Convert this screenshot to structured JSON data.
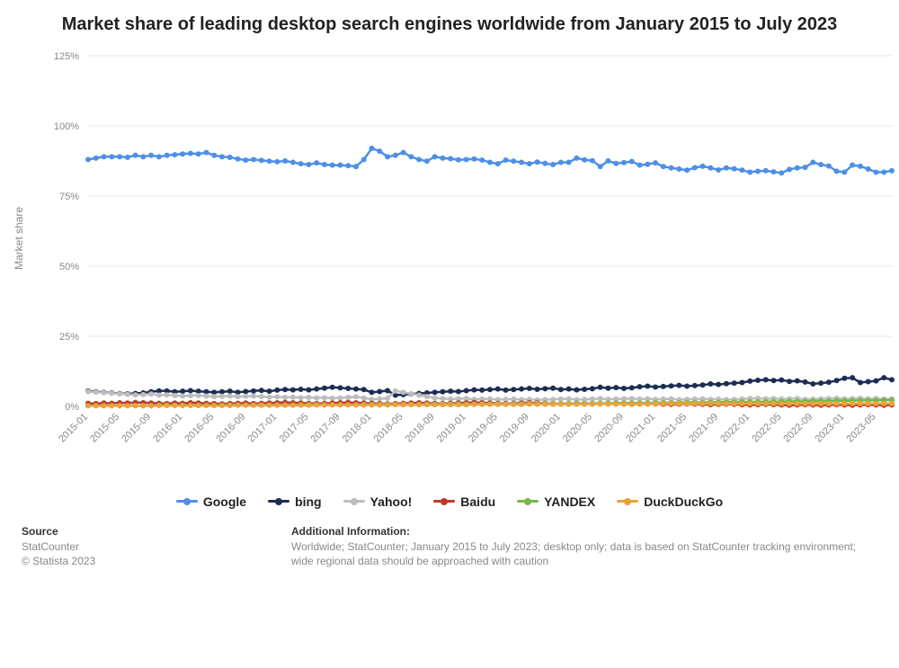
{
  "chart": {
    "type": "line",
    "title": "Market share of leading desktop search engines worldwide from January 2015 to July 2023",
    "ylabel": "Market share",
    "background_color": "#ffffff",
    "grid_color": "#e8e8e8",
    "axis_color": "#cccccc",
    "tick_font_size": 11,
    "title_font_size": 20,
    "line_width": 2.5,
    "marker_radius": 3,
    "ylim": [
      0,
      125
    ],
    "ytick_step": 25,
    "ytick_suffix": "%",
    "x_labels": [
      "2015-01",
      "2015-05",
      "2015-09",
      "2016-01",
      "2016-05",
      "2016-09",
      "2017-01",
      "2017-05",
      "2017-09",
      "2018-01",
      "2018-05",
      "2018-09",
      "2019-01",
      "2019-05",
      "2019-09",
      "2020-01",
      "2020-05",
      "2020-09",
      "2021-01",
      "2021-05",
      "2021-09",
      "2022-01",
      "2022-05",
      "2022-09",
      "2023-01",
      "2023-05"
    ],
    "x_label_every": 4,
    "series": [
      {
        "name": "Google",
        "color": "#4d8fe6",
        "values": [
          88,
          88.5,
          89,
          89,
          89,
          88.8,
          89.5,
          89,
          89.5,
          89,
          89.5,
          89.7,
          90,
          90.2,
          90,
          90.5,
          89.5,
          89,
          88.8,
          88.2,
          87.8,
          88,
          87.7,
          87.4,
          87.2,
          87.5,
          87,
          86.5,
          86.2,
          86.8,
          86.2,
          86,
          86,
          85.8,
          85.5,
          88,
          92,
          91,
          89,
          89.5,
          90.5,
          89,
          88,
          87.4,
          89,
          88.5,
          88.3,
          87.9,
          88,
          88.2,
          87.8,
          87,
          86.5,
          87.8,
          87.4,
          87,
          86.5,
          87.1,
          86.6,
          86.2,
          87,
          87,
          88.5,
          87.9,
          87.6,
          85.5,
          87.5,
          86.6,
          86.9,
          87.3,
          86,
          86.3,
          86.8,
          85.5,
          85,
          84.6,
          84.2,
          85.1,
          85.6,
          85,
          84.3,
          85,
          84.7,
          84.2,
          83.5,
          83.8,
          84,
          83.6,
          83.2,
          84.5,
          85,
          85.2,
          87,
          86.2,
          85.7,
          83.8,
          83.5,
          86,
          85.6,
          84.6,
          83.5,
          83.5,
          84
        ]
      },
      {
        "name": "bing",
        "color": "#1c2d54",
        "values": [
          5.5,
          5.2,
          5,
          4.8,
          4.6,
          4.5,
          4.6,
          4.8,
          5.2,
          5.5,
          5.5,
          5.2,
          5.4,
          5.6,
          5.4,
          5.2,
          5,
          5.2,
          5.4,
          5,
          5.3,
          5.5,
          5.7,
          5.4,
          5.8,
          6,
          5.9,
          6.1,
          5.9,
          6.2,
          6.5,
          6.8,
          6.6,
          6.4,
          6.2,
          6,
          5,
          5.3,
          5.6,
          4,
          4.2,
          4.4,
          4.6,
          4.8,
          5,
          5.2,
          5.4,
          5.3,
          5.6,
          5.9,
          5.8,
          6,
          6.2,
          5.8,
          6,
          6.2,
          6.4,
          6.1,
          6.3,
          6.5,
          6,
          6.2,
          5.9,
          6.1,
          6.3,
          6.8,
          6.5,
          6.7,
          6.4,
          6.6,
          7,
          7.2,
          6.9,
          7.1,
          7.3,
          7.5,
          7.2,
          7.4,
          7.6,
          8,
          7.8,
          8.1,
          8.3,
          8.5,
          9,
          9.3,
          9.5,
          9.2,
          9.4,
          8.9,
          9.1,
          8.7,
          8,
          8.3,
          8.6,
          9.2,
          10,
          10.2,
          8.5,
          8.8,
          9.1,
          10.2,
          9.5
        ]
      },
      {
        "name": "Yahoo!",
        "color": "#bdbdbd",
        "values": [
          5.3,
          5.1,
          4.9,
          4.7,
          4.5,
          4.3,
          4.1,
          4.2,
          4.4,
          4,
          4.1,
          3.9,
          3.7,
          3.8,
          3.9,
          3.7,
          3.5,
          3.6,
          3.7,
          3.5,
          3.6,
          3.7,
          3.5,
          3.3,
          3.4,
          3.2,
          3.3,
          3.1,
          3.2,
          3,
          3.1,
          2.9,
          3,
          3.2,
          3.4,
          3,
          2.5,
          2.7,
          2.9,
          5.5,
          5,
          4.5,
          4,
          3.5,
          3,
          2.8,
          2.6,
          2.7,
          2.8,
          2.5,
          2.6,
          2.7,
          2.4,
          2.5,
          2.6,
          2.4,
          2.5,
          2.3,
          2.4,
          2.5,
          2.6,
          2.7,
          2.4,
          2.5,
          2.6,
          2.8,
          2.5,
          2.6,
          2.7,
          2.8,
          2.6,
          2.7,
          2.5,
          2.6,
          2.7,
          2.4,
          2.5,
          2.6,
          2.7,
          2.5,
          2.6,
          2.4,
          2.5,
          2.6,
          2.8,
          2.9,
          2.7,
          2.8,
          2.6,
          2.7,
          2.8,
          2.5,
          2.6,
          2.7,
          2.8,
          2.9,
          2.7,
          2.8,
          2.9,
          2.7,
          2.8,
          2.6,
          2.7
        ]
      },
      {
        "name": "Baidu",
        "color": "#c0392b",
        "values": [
          1.1,
          1,
          1.2,
          1.1,
          1.3,
          1.2,
          1.4,
          1.3,
          1.2,
          1.1,
          1,
          1.2,
          1.1,
          1.3,
          1.2,
          1.1,
          1,
          0.9,
          1,
          1.1,
          1.2,
          1,
          1.1,
          1.2,
          1.3,
          1.4,
          1.3,
          1.2,
          1.1,
          1,
          1.1,
          1.2,
          1.3,
          1.4,
          1.3,
          1.2,
          1.1,
          1,
          0.9,
          1,
          1.1,
          1.2,
          1.3,
          1.2,
          1.1,
          1,
          1.1,
          1.2,
          1.3,
          1.4,
          1.3,
          1.2,
          1.1,
          1,
          1.1,
          1.2,
          1.3,
          1.2,
          1.1,
          1,
          0.9,
          1,
          1.1,
          1,
          0.9,
          1,
          1.1,
          1,
          0.9,
          0.8,
          0.9,
          1,
          0.9,
          0.8,
          0.7,
          0.8,
          0.9,
          0.8,
          0.7,
          0.6,
          0.7,
          0.8,
          0.7,
          0.6,
          0.5,
          0.6,
          0.7,
          0.6,
          0.5,
          0.4,
          0.5,
          0.6,
          0.5,
          0.4,
          0.5,
          0.6,
          0.5,
          0.4,
          0.5,
          0.6,
          0.5,
          0.4,
          0.5
        ]
      },
      {
        "name": "YANDEX",
        "color": "#7ab547",
        "values": [
          0.3,
          0.3,
          0.3,
          0.3,
          0.3,
          0.3,
          0.3,
          0.3,
          0.3,
          0.4,
          0.4,
          0.4,
          0.4,
          0.4,
          0.4,
          0.4,
          0.4,
          0.4,
          0.5,
          0.5,
          0.5,
          0.5,
          0.5,
          0.5,
          0.5,
          0.5,
          0.5,
          0.6,
          0.6,
          0.6,
          0.6,
          0.6,
          0.6,
          0.6,
          0.6,
          0.7,
          0.7,
          0.7,
          0.7,
          0.7,
          0.7,
          0.7,
          0.7,
          0.8,
          0.8,
          0.8,
          0.8,
          0.8,
          0.8,
          0.8,
          0.9,
          0.9,
          0.9,
          0.9,
          0.9,
          0.9,
          1,
          1,
          1,
          1,
          1,
          1,
          1.1,
          1.1,
          1.1,
          1.1,
          1.1,
          1.2,
          1.2,
          1.2,
          1.2,
          1.2,
          1.3,
          1.3,
          1.3,
          1.3,
          1.4,
          1.4,
          1.4,
          1.4,
          1.5,
          1.5,
          1.5,
          1.6,
          1.6,
          1.6,
          1.7,
          1.7,
          1.7,
          1.8,
          1.8,
          1.8,
          1.9,
          1.9,
          1.9,
          2,
          2,
          2,
          2.1,
          2.1,
          2.1,
          2.2,
          2.2
        ]
      },
      {
        "name": "DuckDuckGo",
        "color": "#e8a33d",
        "values": [
          0.2,
          0.2,
          0.2,
          0.2,
          0.2,
          0.2,
          0.2,
          0.2,
          0.2,
          0.3,
          0.3,
          0.3,
          0.3,
          0.3,
          0.3,
          0.3,
          0.3,
          0.3,
          0.3,
          0.4,
          0.4,
          0.4,
          0.4,
          0.4,
          0.4,
          0.4,
          0.4,
          0.4,
          0.4,
          0.5,
          0.5,
          0.5,
          0.5,
          0.5,
          0.5,
          0.5,
          0.5,
          0.5,
          0.5,
          0.6,
          0.6,
          0.6,
          0.6,
          0.6,
          0.6,
          0.6,
          0.6,
          0.6,
          0.6,
          0.7,
          0.7,
          0.7,
          0.7,
          0.7,
          0.7,
          0.7,
          0.8,
          0.8,
          0.8,
          0.8,
          0.8,
          0.8,
          0.8,
          0.8,
          0.9,
          0.9,
          0.9,
          0.9,
          0.9,
          0.9,
          0.9,
          0.9,
          0.9,
          1,
          1,
          1,
          1,
          1,
          1,
          1,
          1,
          1,
          1,
          1,
          1,
          1,
          1,
          1,
          1,
          1,
          1,
          1,
          1,
          1,
          1,
          1,
          1,
          1,
          1,
          1,
          1,
          1,
          1
        ]
      }
    ]
  },
  "footer": {
    "source_label": "Source",
    "source_name": "StatCounter",
    "copyright": "© Statista 2023",
    "additional_label": "Additional Information:",
    "additional_text": "Worldwide; StatCounter; January 2015 to July 2023; desktop only; data is based on StatCounter tracking environment; wide regional data should be approached with caution"
  }
}
